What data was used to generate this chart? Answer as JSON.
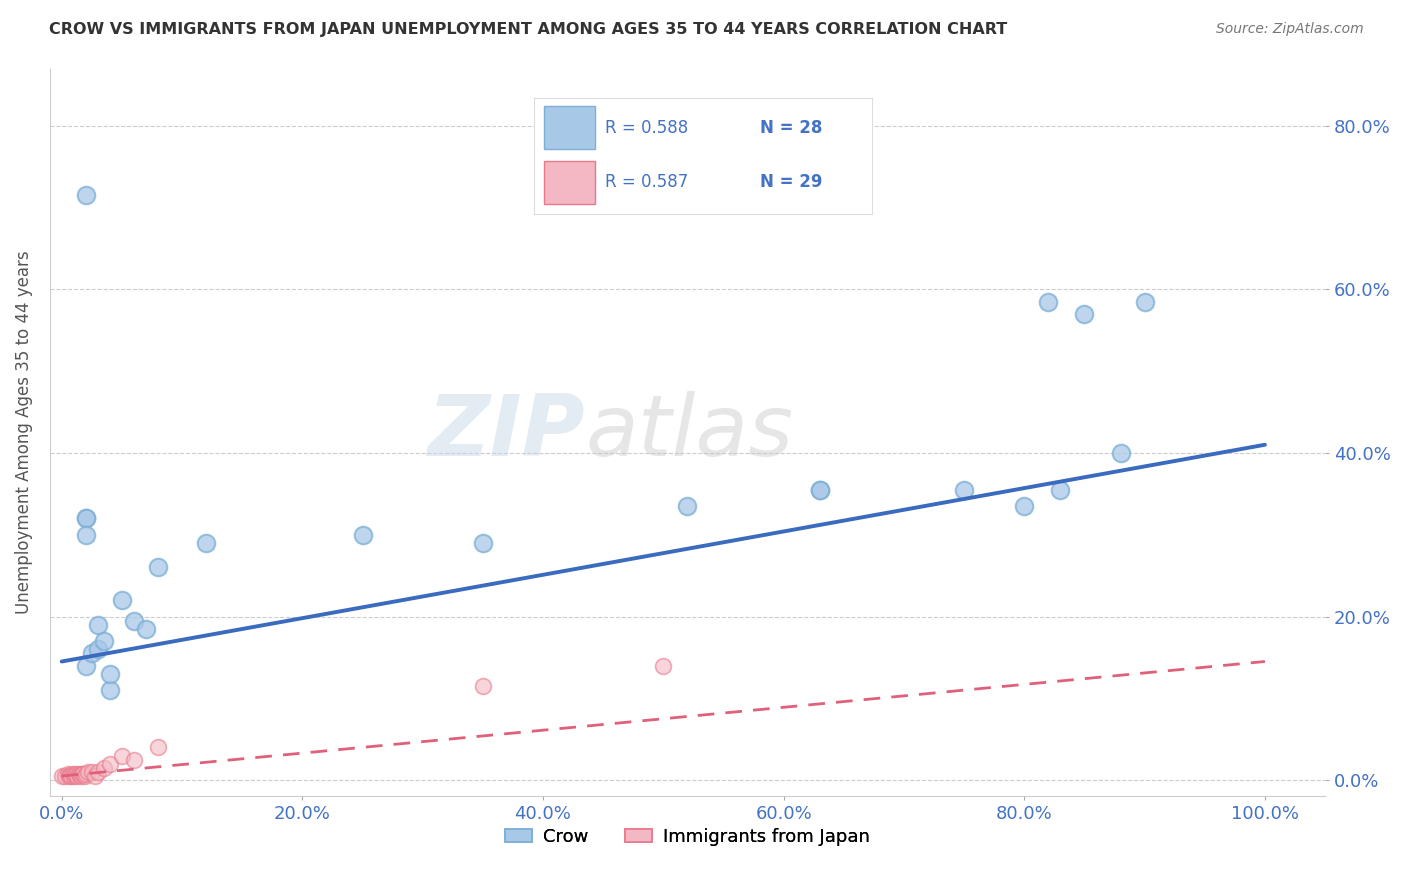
{
  "title": "CROW VS IMMIGRANTS FROM JAPAN UNEMPLOYMENT AMONG AGES 35 TO 44 YEARS CORRELATION CHART",
  "source": "Source: ZipAtlas.com",
  "ylabel_label": "Unemployment Among Ages 35 to 44 years",
  "x_tick_labels": [
    "0.0%",
    "20.0%",
    "40.0%",
    "60.0%",
    "80.0%",
    "100.0%"
  ],
  "x_tick_vals": [
    0.0,
    0.2,
    0.4,
    0.6,
    0.8,
    1.0
  ],
  "y_tick_labels": [
    "0.0%",
    "20.0%",
    "40.0%",
    "60.0%",
    "80.0%"
  ],
  "y_tick_vals": [
    0.0,
    0.2,
    0.4,
    0.6,
    0.8
  ],
  "xlim": [
    -0.01,
    1.05
  ],
  "ylim": [
    -0.02,
    0.87
  ],
  "crow_color": "#a8c8e8",
  "crow_edge_color": "#7bafd4",
  "japan_color": "#f4b8c4",
  "japan_edge_color": "#e8788a",
  "crow_line_color": "#3a6bbf",
  "japan_line_color": "#e0607a",
  "background_color": "#ffffff",
  "watermark_text": "ZIP",
  "watermark_text2": "atlas",
  "crow_scatter_x": [
    0.02,
    0.025,
    0.03,
    0.03,
    0.035,
    0.04,
    0.04,
    0.05,
    0.06,
    0.07,
    0.08,
    0.88,
    0.9,
    0.82,
    0.85,
    0.63,
    0.63,
    0.52,
    0.75,
    0.8,
    0.83,
    0.35,
    0.25,
    0.12,
    0.02,
    0.02,
    0.02,
    0.02
  ],
  "crow_scatter_y": [
    0.14,
    0.155,
    0.16,
    0.19,
    0.17,
    0.11,
    0.13,
    0.22,
    0.195,
    0.185,
    0.26,
    0.4,
    0.585,
    0.585,
    0.57,
    0.355,
    0.355,
    0.335,
    0.355,
    0.335,
    0.355,
    0.29,
    0.3,
    0.29,
    0.715,
    0.32,
    0.32,
    0.3
  ],
  "japan_scatter_x": [
    0.0,
    0.003,
    0.005,
    0.006,
    0.007,
    0.008,
    0.009,
    0.01,
    0.011,
    0.012,
    0.013,
    0.014,
    0.015,
    0.016,
    0.017,
    0.018,
    0.019,
    0.02,
    0.022,
    0.025,
    0.028,
    0.03,
    0.035,
    0.04,
    0.05,
    0.06,
    0.08,
    0.35,
    0.5
  ],
  "japan_scatter_y": [
    0.005,
    0.005,
    0.008,
    0.005,
    0.006,
    0.005,
    0.007,
    0.005,
    0.006,
    0.008,
    0.005,
    0.007,
    0.006,
    0.005,
    0.008,
    0.007,
    0.005,
    0.008,
    0.01,
    0.01,
    0.005,
    0.01,
    0.015,
    0.02,
    0.03,
    0.025,
    0.04,
    0.115,
    0.14
  ],
  "crow_trend_x": [
    0.0,
    1.0
  ],
  "crow_trend_y": [
    0.145,
    0.41
  ],
  "japan_trend_x": [
    0.0,
    1.0
  ],
  "japan_trend_y": [
    0.005,
    0.145
  ],
  "legend_crow_R": "R = 0.588",
  "legend_crow_N": "N = 28",
  "legend_japan_R": "R = 0.587",
  "legend_japan_N": "N = 29"
}
